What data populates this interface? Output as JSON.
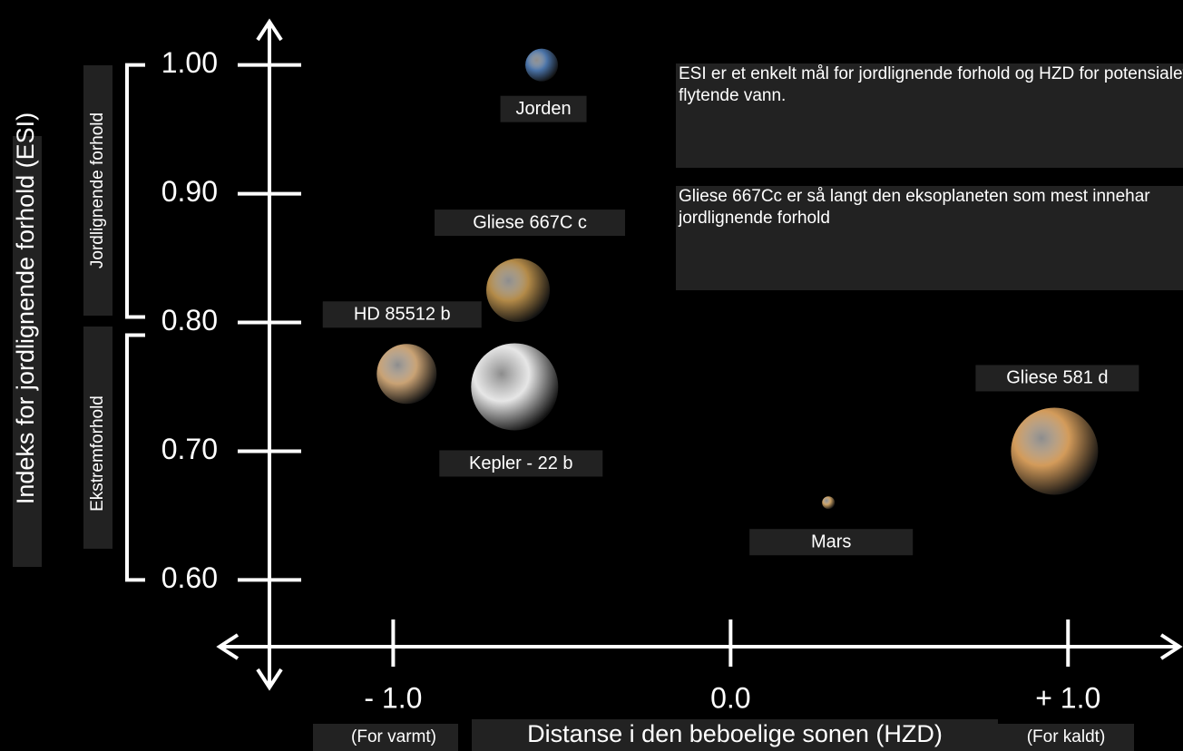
{
  "chart_data": {
    "type": "scatter",
    "ylabel": "Indeks for jordlignende forhold (ESI)",
    "xlabel": "Distanse i den beboelige sonen (HZD)",
    "x_annotations": [
      "(For varmt)",
      "(For kaldt)"
    ],
    "y_brackets": [
      "Jordlignende forhold",
      "Ekstremforhold"
    ],
    "notes": [
      "ESI er et enkelt mål for jordlignende forhold og HZD for potensialet for flytende vann.",
      "Gliese 667Cc er så langt den eksoplaneten som mest innehar jordlignende forhold"
    ],
    "labels": [
      "Jorden",
      "Gliese 667C c",
      "HD 85512 b",
      "Kepler - 22 b",
      "Mars",
      "Gliese 581 d"
    ],
    "x": [
      -0.56,
      -0.63,
      -0.96,
      -0.64,
      0.29,
      0.96
    ],
    "values": [
      1.0,
      0.825,
      0.76,
      0.75,
      0.66,
      0.7
    ],
    "sizes": [
      18,
      35,
      33,
      48,
      7,
      48
    ],
    "colors": [
      "#4a73a8",
      "#b38a48",
      "#c9a274",
      "#e6e6e6",
      "#caa064",
      "#d39b5a"
    ],
    "xlim": [
      -1.52,
      1.33
    ],
    "ylim": [
      0.515,
      1.035
    ],
    "xticks": [
      {
        "value": -1,
        "label": "- 1.0"
      },
      {
        "value": 0,
        "label": "0.0"
      },
      {
        "value": 1,
        "label": "+ 1.0"
      }
    ],
    "yticks": [
      {
        "value": 1,
        "label": "1.00"
      },
      {
        "value": 0.9,
        "label": "0.90"
      },
      {
        "value": 0.8,
        "label": "0.80"
      },
      {
        "value": 0.7,
        "label": "0.70"
      },
      {
        "value": 0.6,
        "label": "0.60"
      }
    ]
  }
}
